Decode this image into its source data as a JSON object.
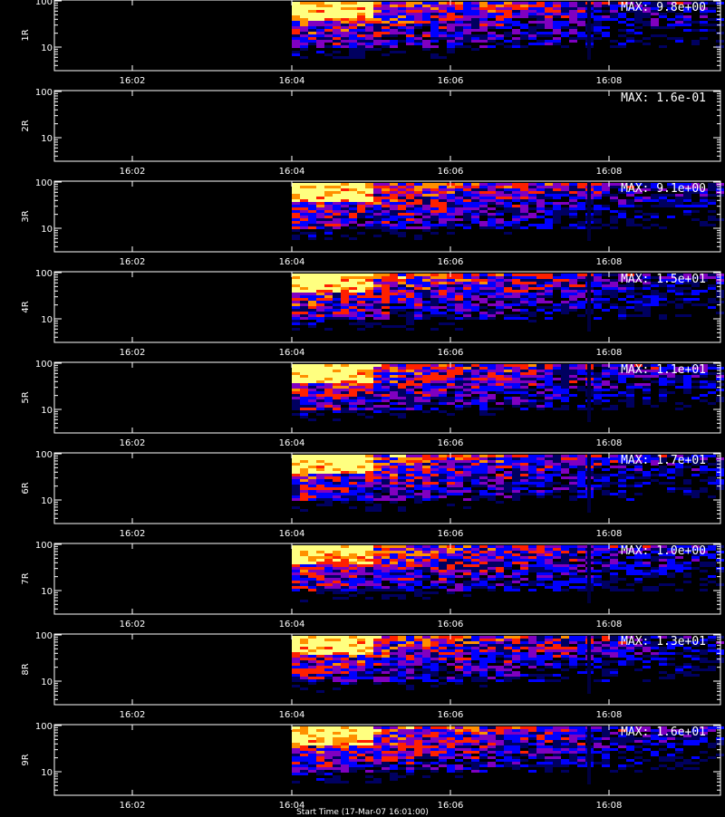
{
  "chart_data": {
    "type": "heatmap",
    "x_ticks": [
      "16:02",
      "16:04",
      "16:06",
      "16:08"
    ],
    "y_scale": "log",
    "y_ticks": [
      "100",
      "10"
    ],
    "data_start": "16:04",
    "panels": [
      {
        "label": "1R",
        "max_label": "MAX: 9.8e+00",
        "max": 9.8
      },
      {
        "label": "2R",
        "max_label": "MAX: 1.6e-01",
        "max": 0.16
      },
      {
        "label": "3R",
        "max_label": "MAX: 9.1e+00",
        "max": 9.1
      },
      {
        "label": "4R",
        "max_label": "MAX: 1.5e+01",
        "max": 15
      },
      {
        "label": "5R",
        "max_label": "MAX: 1.1e+01",
        "max": 11
      },
      {
        "label": "6R",
        "max_label": "MAX: 1.7e+01",
        "max": 17
      },
      {
        "label": "7R",
        "max_label": "MAX: 1.0e+00",
        "max": 1.0
      },
      {
        "label": "8R",
        "max_label": "MAX: 1.3e+01",
        "max": 13
      },
      {
        "label": "9R",
        "max_label": "MAX: 1.6e+01",
        "max": 16
      }
    ]
  },
  "colors": {
    "background": "#000000",
    "axis": "#ffffff",
    "colormap": [
      "#000000",
      "#000060",
      "#0000ff",
      "#8000c0",
      "#ff2000",
      "#ff9000",
      "#ffff80"
    ]
  },
  "footer_text": "Start Time (17-Mar-07 16:01:00)"
}
